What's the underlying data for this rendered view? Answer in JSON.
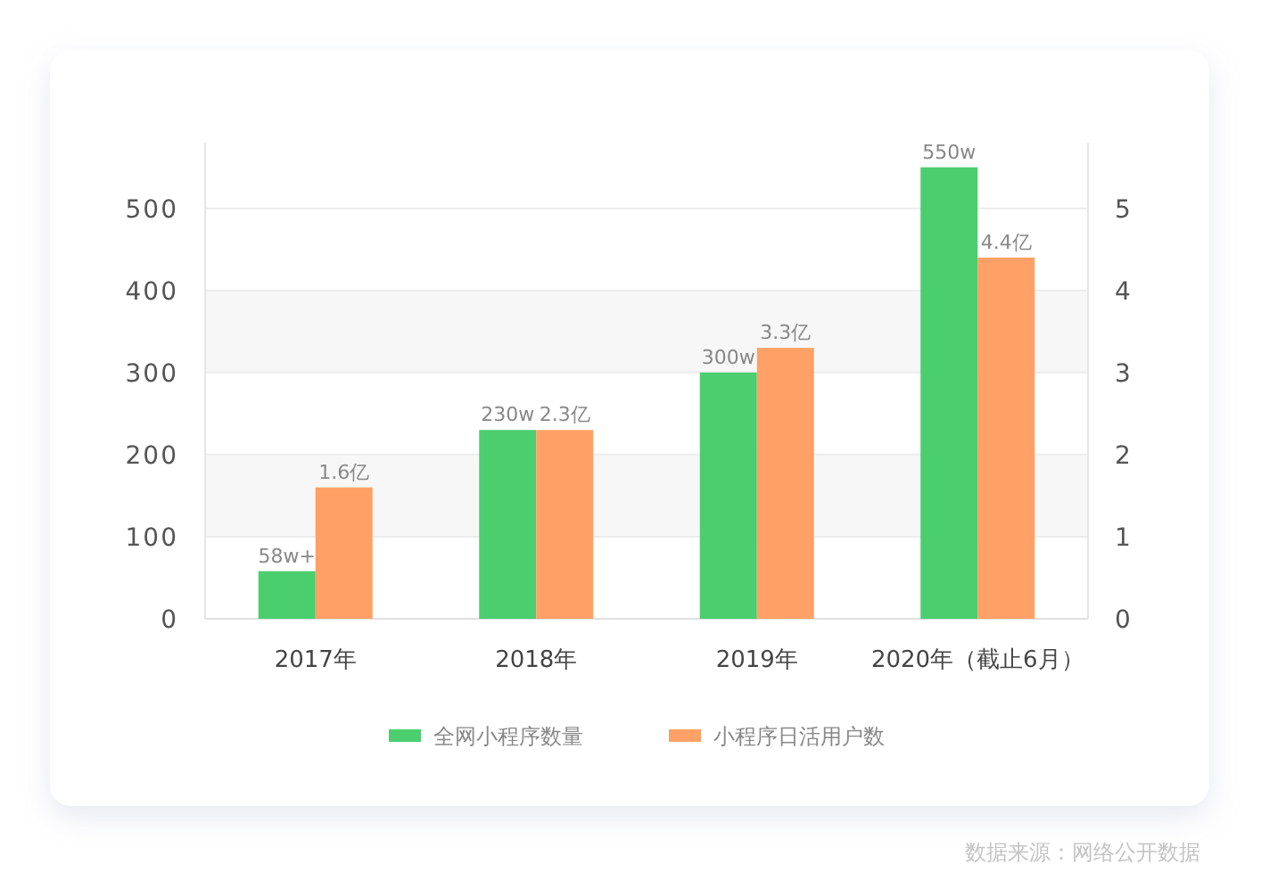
{
  "chart_data": {
    "type": "bar",
    "categories": [
      "2017年",
      "2018年",
      "2019年",
      "2020年（截止6月）"
    ],
    "series": [
      {
        "name": "全网小程序数量",
        "color": "#4ace6e",
        "values": [
          58,
          230,
          300,
          550
        ],
        "value_labels": [
          "58w+",
          "230w",
          "300w",
          "550w"
        ]
      },
      {
        "name": "小程序日活用户数",
        "color": "#ffa066",
        "axis": "y2",
        "values": [
          1.6,
          2.3,
          3.3,
          4.4
        ],
        "value_labels": [
          "1.6亿",
          "2.3亿",
          "3.3亿",
          "4.4亿"
        ]
      }
    ],
    "ylim": [
      0,
      580
    ],
    "yticks": [
      0,
      100,
      200,
      300,
      400,
      500
    ],
    "y2lim": [
      0,
      5.8
    ],
    "y2ticks": [
      0,
      1,
      2,
      3,
      4,
      5
    ],
    "grid": "y",
    "legend": "bottom",
    "annotations": [
      "数据来源：网络公开数据"
    ]
  }
}
